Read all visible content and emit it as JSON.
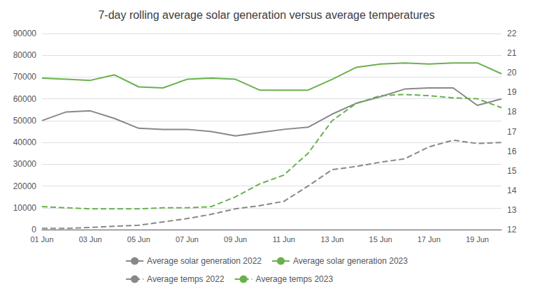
{
  "chart_data": {
    "type": "line",
    "title": "7-day rolling average solar generation versus average temperatures",
    "categories": [
      "01 Jun",
      null,
      "03 Jun",
      null,
      "05 Jun",
      null,
      "07 Jun",
      null,
      "09 Jun",
      null,
      "11 Jun",
      null,
      "13 Jun",
      null,
      "15 Jun",
      null,
      "17 Jun",
      null,
      "19 Jun",
      null
    ],
    "series": [
      {
        "name": "Average solar generation 2022",
        "color": "#888888",
        "line_style": "solid",
        "values": [
          50000,
          54000,
          54500,
          51000,
          46500,
          46000,
          46000,
          45000,
          43000,
          44500,
          46000,
          47000,
          53000,
          58000,
          61000,
          64500,
          65000,
          65000,
          57000,
          60000
        ]
      },
      {
        "name": "Average solar generation 2023",
        "color": "#6ab04c",
        "line_style": "solid",
        "values": [
          69500,
          69000,
          68500,
          71000,
          65500,
          65000,
          69000,
          69500,
          69000,
          64000,
          64000,
          64000,
          69000,
          74500,
          76000,
          76500,
          76000,
          76500,
          76500,
          71500
        ]
      },
      {
        "name": "Average temps 2022",
        "color": "#888888",
        "line_style": "dashed",
        "axis": "y2",
        "values": [
          12.06,
          12.06,
          12.11,
          12.17,
          12.22,
          12.39,
          12.56,
          12.78,
          13.06,
          13.22,
          13.44,
          14.22,
          15.06,
          15.22,
          15.44,
          15.61,
          16.22,
          16.56,
          16.39,
          16.44
        ]
      },
      {
        "name": "Average temps 2023",
        "color": "#6ab04c",
        "line_style": "dashed",
        "axis": "y2",
        "values": [
          13.17,
          13.11,
          13.06,
          13.06,
          13.06,
          13.11,
          13.11,
          13.17,
          13.67,
          14.33,
          14.78,
          15.89,
          17.56,
          18.44,
          18.83,
          18.89,
          18.83,
          18.72,
          18.67,
          18.22
        ]
      }
    ],
    "ylim": [
      0,
      90000
    ],
    "yticks": [
      0,
      10000,
      20000,
      30000,
      40000,
      50000,
      60000,
      70000,
      80000,
      90000
    ],
    "y2lim": [
      12,
      22
    ],
    "y2ticks": [
      12,
      13,
      14,
      15,
      16,
      17,
      18,
      19,
      20,
      21,
      22
    ],
    "grid": true,
    "legend": "bottom"
  }
}
